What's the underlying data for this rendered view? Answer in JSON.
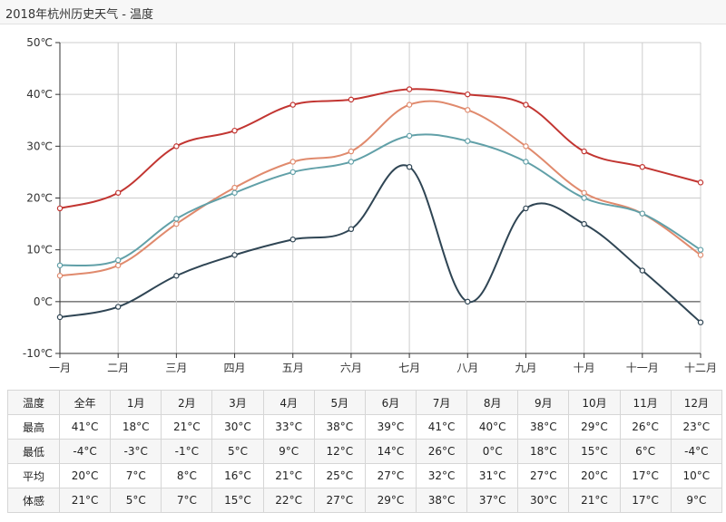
{
  "window": {
    "title": "2018年杭州历史天气 - 温度"
  },
  "chart_data": {
    "type": "line",
    "title": "",
    "xlabel": "",
    "ylabel": "",
    "categories": [
      "一月",
      "二月",
      "三月",
      "四月",
      "五月",
      "六月",
      "七月",
      "八月",
      "九月",
      "十月",
      "十一月",
      "十二月"
    ],
    "y_ticks": [
      "-10℃",
      "0℃",
      "10℃",
      "20℃",
      "30℃",
      "40℃",
      "50℃"
    ],
    "ylim": [
      -10,
      50
    ],
    "grid": true,
    "series": [
      {
        "color": "#c23531",
        "values": [
          18,
          21,
          30,
          33,
          38,
          39,
          41,
          40,
          38,
          29,
          26,
          23
        ]
      },
      {
        "color": "#e08a6d",
        "values": [
          5,
          7,
          15,
          22,
          27,
          29,
          38,
          37,
          30,
          21,
          17,
          9
        ]
      },
      {
        "color": "#61a0a8",
        "values": [
          7,
          8,
          16,
          21,
          25,
          27,
          32,
          31,
          27,
          20,
          17,
          10
        ]
      },
      {
        "color": "#2f4554",
        "values": [
          -3,
          -1,
          5,
          9,
          12,
          14,
          26,
          0,
          18,
          15,
          6,
          -4
        ]
      }
    ]
  },
  "table": {
    "header": [
      "温度",
      "全年",
      "1月",
      "2月",
      "3月",
      "4月",
      "5月",
      "6月",
      "7月",
      "8月",
      "9月",
      "10月",
      "11月",
      "12月"
    ],
    "rows": [
      [
        "最高",
        "41°C",
        "18°C",
        "21°C",
        "30°C",
        "33°C",
        "38°C",
        "39°C",
        "41°C",
        "40°C",
        "38°C",
        "29°C",
        "26°C",
        "23°C"
      ],
      [
        "最低",
        "-4°C",
        "-3°C",
        "-1°C",
        "5°C",
        "9°C",
        "12°C",
        "14°C",
        "26°C",
        "0°C",
        "18°C",
        "15°C",
        "6°C",
        "-4°C"
      ],
      [
        "平均",
        "20°C",
        "7°C",
        "8°C",
        "16°C",
        "21°C",
        "25°C",
        "27°C",
        "32°C",
        "31°C",
        "27°C",
        "20°C",
        "17°C",
        "10°C"
      ],
      [
        "体感",
        "21°C",
        "5°C",
        "7°C",
        "15°C",
        "22°C",
        "27°C",
        "29°C",
        "38°C",
        "37°C",
        "30°C",
        "21°C",
        "17°C",
        "9°C"
      ]
    ]
  }
}
